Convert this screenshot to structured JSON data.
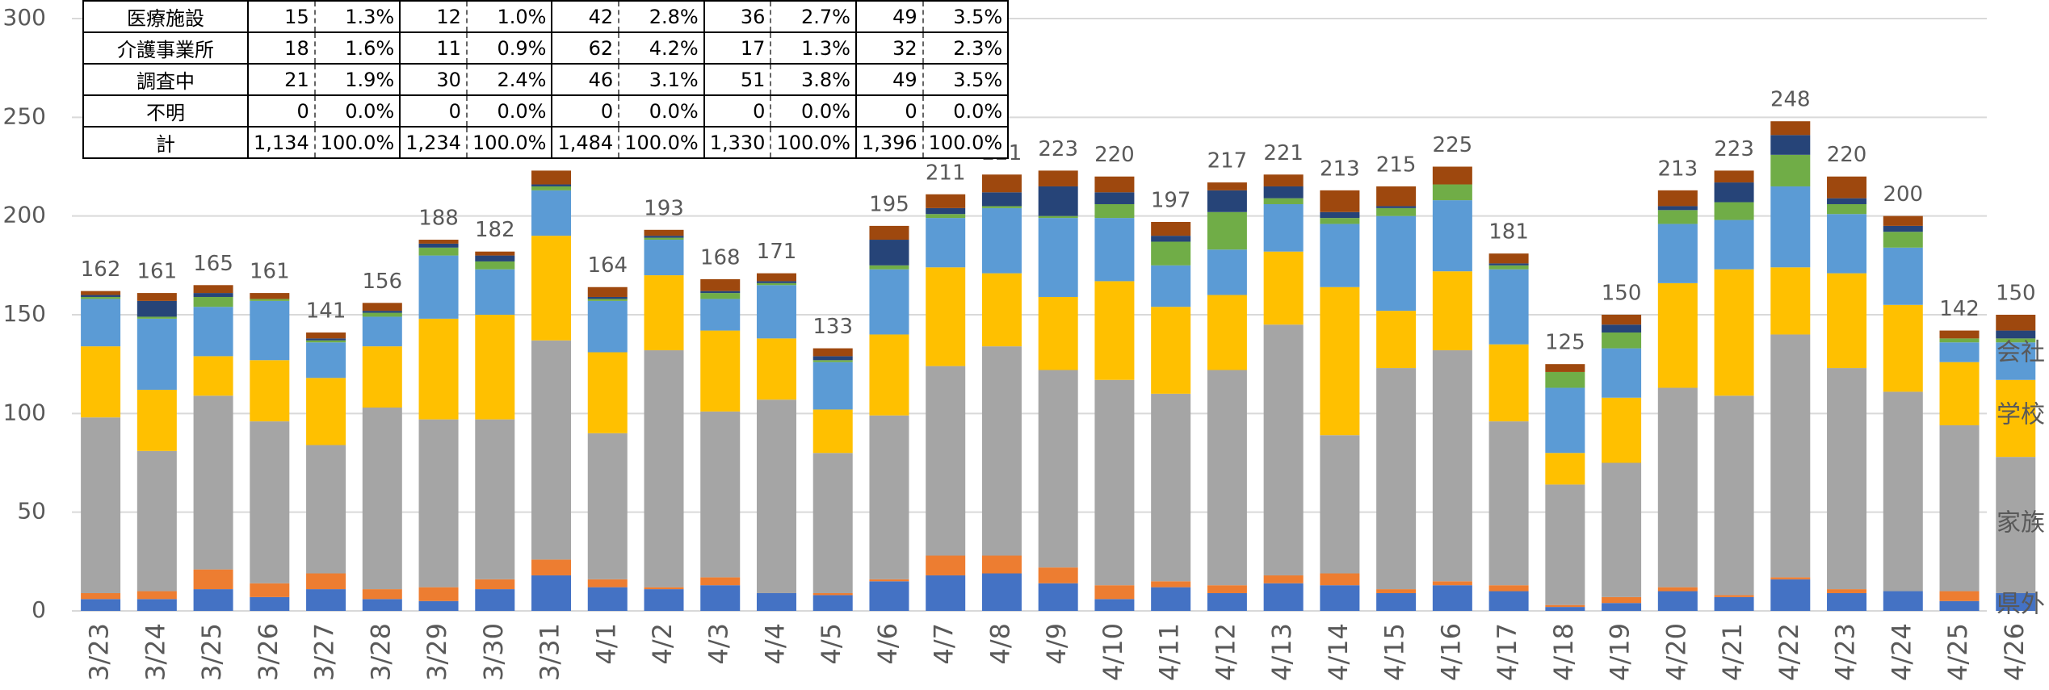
{
  "chart_data": {
    "type": "stacked_bar",
    "categories": [
      "3/23",
      "3/24",
      "3/25",
      "3/26",
      "3/27",
      "3/28",
      "3/29",
      "3/30",
      "3/31",
      "4/1",
      "4/2",
      "4/3",
      "4/4",
      "4/5",
      "4/6",
      "4/7",
      "4/8",
      "4/9",
      "4/10",
      "4/11",
      "4/12",
      "4/13",
      "4/14",
      "4/15",
      "4/16",
      "4/17",
      "4/18",
      "4/19",
      "4/20",
      "4/21",
      "4/22",
      "4/23",
      "4/24",
      "4/25",
      "4/26"
    ],
    "series": [
      {
        "name": "県外",
        "color": "#4472c4",
        "values": [
          6,
          6,
          11,
          7,
          11,
          6,
          5,
          11,
          18,
          12,
          11,
          13,
          9,
          8,
          15,
          18,
          19,
          14,
          6,
          12,
          9,
          14,
          13,
          9,
          13,
          10,
          2,
          4,
          10,
          7,
          16,
          9,
          10,
          5,
          9
        ]
      },
      {
        "color": "#ed7d31",
        "values": [
          3,
          4,
          10,
          7,
          8,
          5,
          7,
          5,
          8,
          4,
          1,
          4,
          0,
          1,
          1,
          10,
          9,
          8,
          7,
          3,
          4,
          4,
          6,
          2,
          2,
          3,
          1,
          3,
          2,
          1,
          1,
          2,
          0,
          5,
          0
        ]
      },
      {
        "name": "家族",
        "color": "#a5a5a5",
        "values": [
          89,
          71,
          88,
          82,
          65,
          92,
          85,
          81,
          111,
          74,
          120,
          84,
          98,
          71,
          83,
          96,
          106,
          100,
          104,
          95,
          109,
          127,
          70,
          112,
          117,
          83,
          61,
          68,
          101,
          101,
          123,
          112,
          101,
          84,
          69
        ]
      },
      {
        "name": "学校",
        "color": "#ffc000",
        "values": [
          36,
          31,
          20,
          31,
          34,
          31,
          51,
          53,
          53,
          41,
          38,
          41,
          31,
          22,
          41,
          50,
          37,
          37,
          50,
          44,
          38,
          37,
          75,
          29,
          40,
          39,
          16,
          33,
          53,
          64,
          34,
          48,
          44,
          32,
          39
        ]
      },
      {
        "name": "会社",
        "color": "#5b9bd5",
        "values": [
          24,
          36,
          25,
          30,
          18,
          15,
          32,
          23,
          23,
          26,
          18,
          16,
          27,
          24,
          33,
          25,
          33,
          40,
          32,
          21,
          23,
          24,
          32,
          48,
          36,
          38,
          33,
          25,
          30,
          25,
          41,
          30,
          29,
          10,
          19
        ]
      },
      {
        "color": "#70ad47",
        "values": [
          1,
          1,
          5,
          1,
          1,
          2,
          4,
          4,
          2,
          1,
          1,
          3,
          1,
          1,
          2,
          2,
          1,
          1,
          7,
          12,
          19,
          3,
          3,
          4,
          8,
          2,
          8,
          8,
          7,
          9,
          16,
          5,
          8,
          2,
          2
        ]
      },
      {
        "color": "#264478",
        "values": [
          1,
          8,
          2,
          0,
          1,
          1,
          2,
          3,
          1,
          1,
          1,
          1,
          1,
          2,
          13,
          3,
          7,
          15,
          6,
          3,
          11,
          6,
          3,
          1,
          0,
          1,
          0,
          4,
          2,
          10,
          10,
          3,
          3,
          0,
          4
        ]
      },
      {
        "color": "#9e480e",
        "values": [
          2,
          4,
          4,
          3,
          3,
          4,
          2,
          2,
          7,
          5,
          3,
          6,
          4,
          4,
          7,
          7,
          9,
          8,
          8,
          7,
          4,
          6,
          11,
          10,
          9,
          5,
          4,
          5,
          8,
          6,
          7,
          11,
          5,
          4,
          8
        ]
      }
    ],
    "totals": [
      162,
      161,
      165,
      161,
      141,
      156,
      188,
      182,
      223,
      164,
      193,
      168,
      171,
      133,
      195,
      211,
      221,
      223,
      220,
      197,
      217,
      221,
      213,
      215,
      225,
      181,
      125,
      150,
      213,
      223,
      248,
      220,
      200,
      142,
      150
    ],
    "ylim": [
      0,
      300
    ],
    "yticks": [
      0,
      50,
      100,
      150,
      200,
      250,
      300
    ],
    "grid": true
  },
  "table": {
    "rows": [
      [
        "医療施設",
        "15",
        "1.3%",
        "12",
        "1.0%",
        "42",
        "2.8%",
        "36",
        "2.7%",
        "49",
        "3.5%"
      ],
      [
        "介護事業所",
        "18",
        "1.6%",
        "11",
        "0.9%",
        "62",
        "4.2%",
        "17",
        "1.3%",
        "32",
        "2.3%"
      ],
      [
        "調査中",
        "21",
        "1.9%",
        "30",
        "2.4%",
        "46",
        "3.1%",
        "51",
        "3.8%",
        "49",
        "3.5%"
      ],
      [
        "不明",
        "0",
        "0.0%",
        "0",
        "0.0%",
        "0",
        "0.0%",
        "0",
        "0.0%",
        "0",
        "0.0%"
      ],
      [
        "計",
        "1,134",
        "100.0%",
        "1,234",
        "100.0%",
        "1,484",
        "100.0%",
        "1,330",
        "100.0%",
        "1,396",
        "100.0%"
      ]
    ]
  }
}
